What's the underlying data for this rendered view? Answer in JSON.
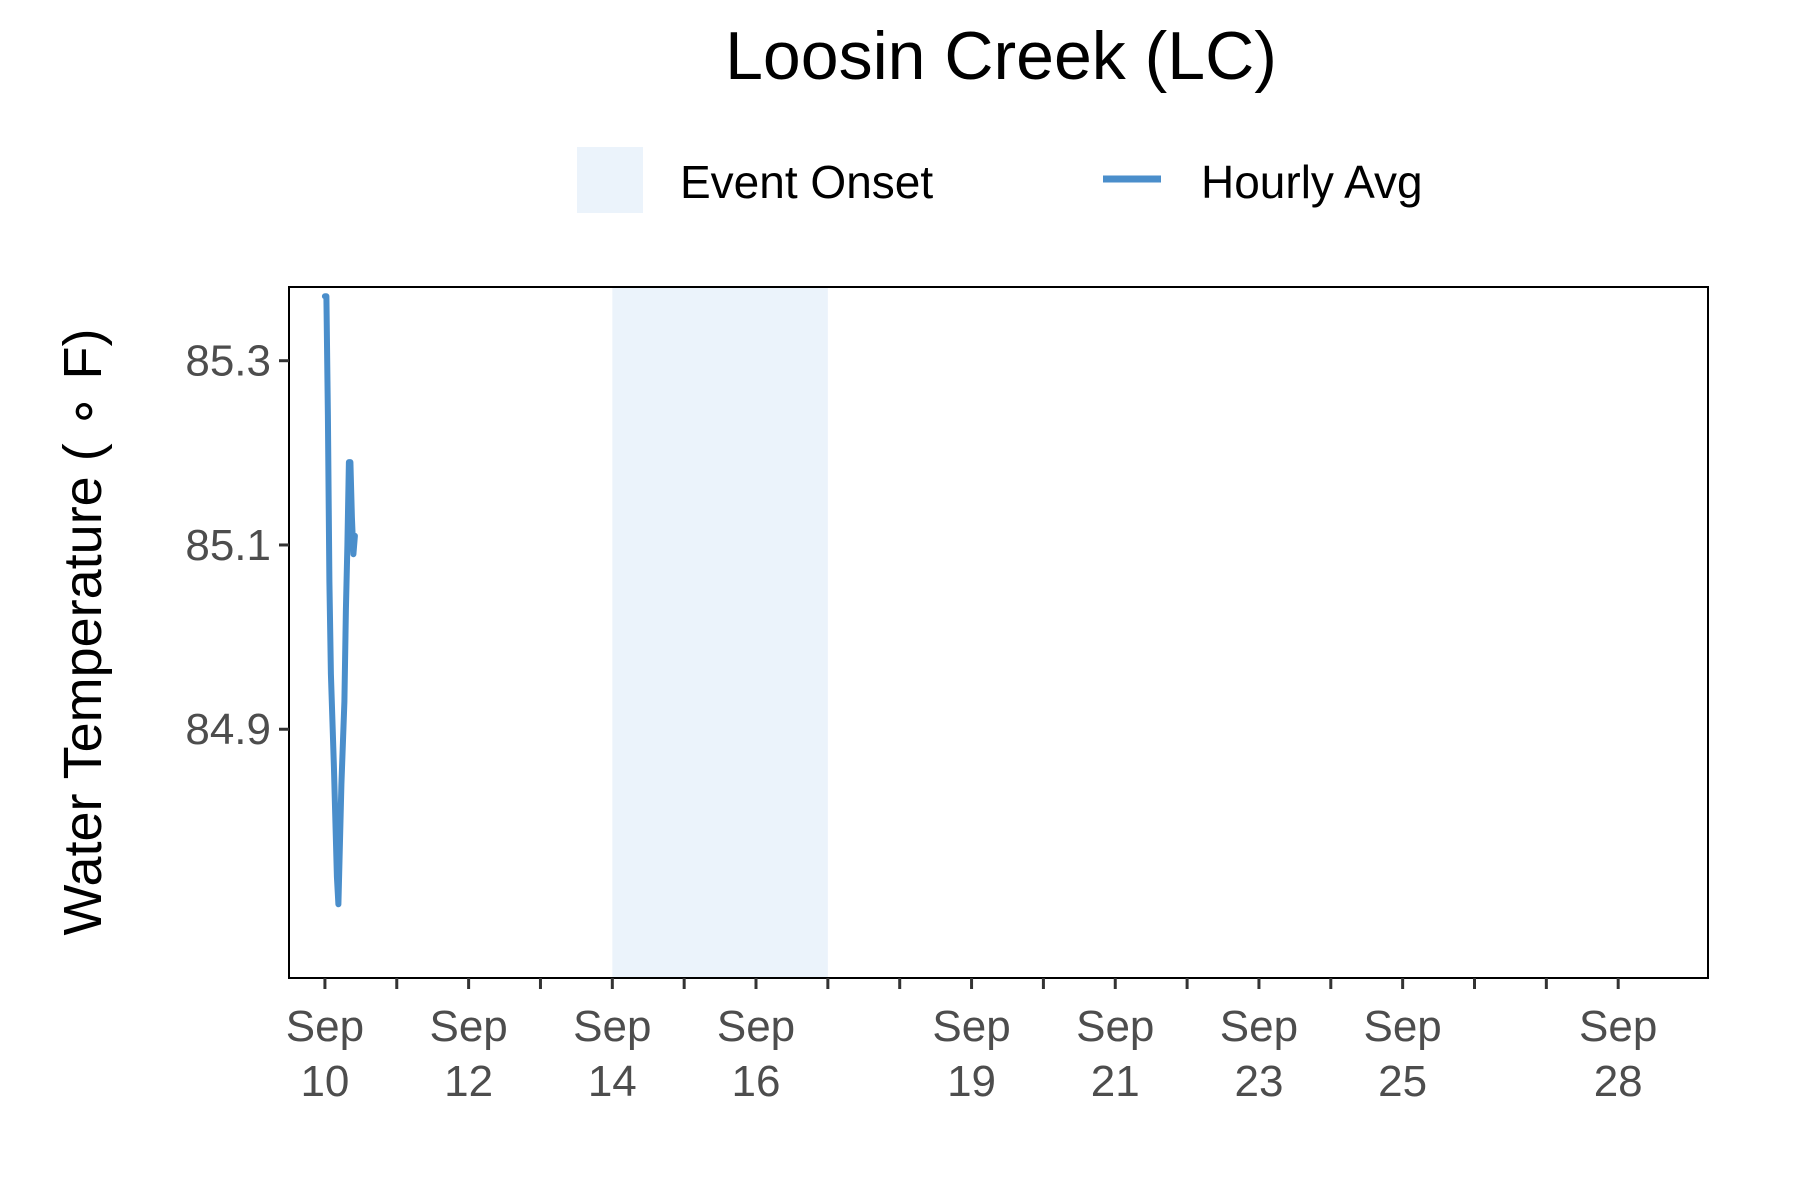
{
  "chart_data": {
    "type": "line",
    "title": "Loosin Creek (LC)",
    "xlabel": "",
    "ylabel": "Water Temperature ( ∘ F)",
    "legend_position": "top",
    "grid": false,
    "xlim": [
      "2024-09-09 12:00",
      "2024-09-29 06:00"
    ],
    "ylim": [
      84.63,
      85.38
    ],
    "yticks": [
      84.9,
      85.1,
      85.3
    ],
    "ytick_labels": [
      "84.9",
      "85.1",
      "85.3"
    ],
    "xtick_labels": [
      {
        "date": "2024-09-10",
        "line1": "Sep",
        "line2": "10"
      },
      {
        "date": "2024-09-12",
        "line1": "Sep",
        "line2": "12"
      },
      {
        "date": "2024-09-14",
        "line1": "Sep",
        "line2": "14"
      },
      {
        "date": "2024-09-16",
        "line1": "Sep",
        "line2": "16"
      },
      {
        "date": "2024-09-19",
        "line1": "Sep",
        "line2": "19"
      },
      {
        "date": "2024-09-21",
        "line1": "Sep",
        "line2": "21"
      },
      {
        "date": "2024-09-23",
        "line1": "Sep",
        "line2": "23"
      },
      {
        "date": "2024-09-25",
        "line1": "Sep",
        "line2": "25"
      },
      {
        "date": "2024-09-28",
        "line1": "Sep",
        "line2": "28"
      }
    ],
    "minor_ticks": [
      "2024-09-11",
      "2024-09-13",
      "2024-09-15",
      "2024-09-17",
      "2024-09-18",
      "2024-09-20",
      "2024-09-22",
      "2024-09-24",
      "2024-09-26",
      "2024-09-27"
    ],
    "event_onset": {
      "name": "Event Onset",
      "start": "2024-09-14",
      "end": "2024-09-17",
      "color": "#ebf3fb"
    },
    "series": [
      {
        "name": "Hourly Avg",
        "color": "#4a8ecb",
        "points": [
          {
            "x": "2024-09-10 00:00",
            "y": 85.37
          },
          {
            "x": "2024-09-10 00:30",
            "y": 85.37
          },
          {
            "x": "2024-09-10 01:00",
            "y": 85.24
          },
          {
            "x": "2024-09-10 01:30",
            "y": 85.06
          },
          {
            "x": "2024-09-10 02:00",
            "y": 84.96
          },
          {
            "x": "2024-09-10 03:00",
            "y": 84.86
          },
          {
            "x": "2024-09-10 04:00",
            "y": 84.74
          },
          {
            "x": "2024-09-10 04:30",
            "y": 84.71
          },
          {
            "x": "2024-09-10 05:30",
            "y": 84.84
          },
          {
            "x": "2024-09-10 06:30",
            "y": 84.93
          },
          {
            "x": "2024-09-10 07:00",
            "y": 85.03
          },
          {
            "x": "2024-09-10 07:30",
            "y": 85.1
          },
          {
            "x": "2024-09-10 08:00",
            "y": 85.19
          },
          {
            "x": "2024-09-10 08:30",
            "y": 85.19
          },
          {
            "x": "2024-09-10 09:00",
            "y": 85.13
          },
          {
            "x": "2024-09-10 09:30",
            "y": 85.09
          },
          {
            "x": "2024-09-10 10:00",
            "y": 85.11
          }
        ]
      }
    ]
  },
  "legend": {
    "items": [
      {
        "label": "Event Onset"
      },
      {
        "label": "Hourly Avg"
      }
    ]
  }
}
